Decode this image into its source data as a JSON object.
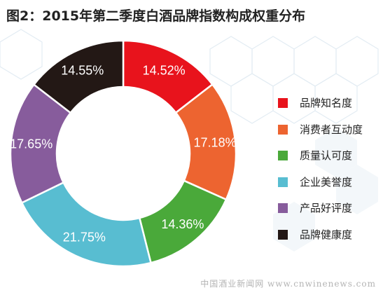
{
  "title": "图2：2015年第二季度白酒品牌指数构成权重分布",
  "chart_data": {
    "type": "pie",
    "title": "图2：2015年第二季度白酒品牌指数构成权重分布",
    "categories": [
      "品牌知名度",
      "消费者互动度",
      "质量认可度",
      "企业美誉度",
      "产品好评度",
      "品牌健康度"
    ],
    "values": [
      14.52,
      17.18,
      14.36,
      21.75,
      17.65,
      14.55
    ],
    "labels": [
      "14.52%",
      "17.18%",
      "14.36%",
      "21.75%",
      "17.65%",
      "14.55%"
    ],
    "colors": [
      "#e8131c",
      "#ed6430",
      "#4aa93a",
      "#58bdd1",
      "#875c9c",
      "#231815"
    ],
    "legend_position": "right"
  },
  "watermark": "中国酒业新闻网 www.cnwinenews.com"
}
